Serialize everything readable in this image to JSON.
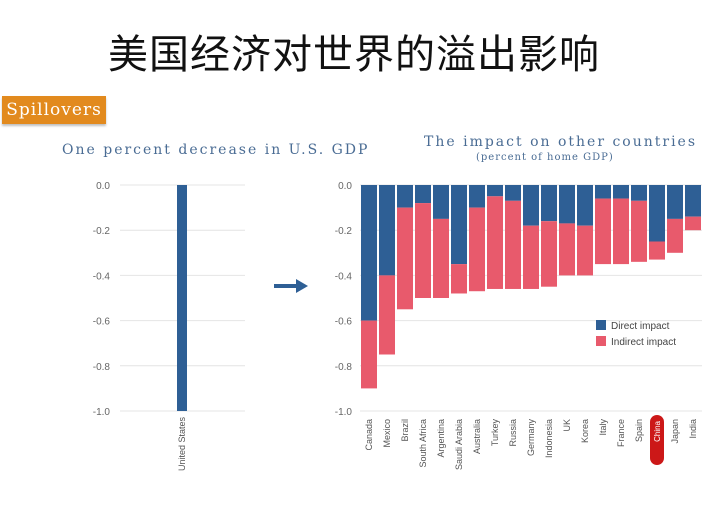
{
  "slide": {
    "title": "美国经济对世界的溢出影响",
    "badge": "Spillovers"
  },
  "colors": {
    "direct": "#2e5f95",
    "indirect": "#e85a6c",
    "badge": "#e28a1e",
    "arrow": "#2e5f95",
    "highlight": "#cc1818"
  },
  "chart_data": [
    {
      "type": "bar",
      "title": "One percent decrease in U.S. GDP",
      "categories": [
        "United States"
      ],
      "values": [
        -1.0
      ],
      "ylim": [
        -1.0,
        0.0
      ],
      "yticks": [
        "0.0",
        "-0.2",
        "-0.4",
        "-0.6",
        "-0.8",
        "-1.0"
      ],
      "grid": true
    },
    {
      "type": "bar",
      "stacked": true,
      "title": "The impact on other countries",
      "subtitle": "(percent of home GDP)",
      "categories": [
        "Canada",
        "Mexico",
        "Brazil",
        "South Africa",
        "Argentina",
        "Saudi Arabia",
        "Australia",
        "Turkey",
        "Russia",
        "Germany",
        "Indonesia",
        "UK",
        "Korea",
        "Italy",
        "France",
        "Spain",
        "China",
        "Japan",
        "India"
      ],
      "highlighted_category": "China",
      "series": [
        {
          "name": "Direct impact",
          "values": [
            -0.6,
            -0.4,
            -0.1,
            -0.08,
            -0.15,
            -0.35,
            -0.1,
            -0.05,
            -0.07,
            -0.18,
            -0.16,
            -0.17,
            -0.18,
            -0.06,
            -0.06,
            -0.07,
            -0.25,
            -0.15,
            -0.14
          ]
        },
        {
          "name": "Indirect impact",
          "values": [
            -0.3,
            -0.35,
            -0.45,
            -0.42,
            -0.35,
            -0.13,
            -0.37,
            -0.41,
            -0.39,
            -0.28,
            -0.29,
            -0.23,
            -0.22,
            -0.29,
            -0.29,
            -0.27,
            -0.08,
            -0.15,
            -0.06
          ]
        }
      ],
      "ylim": [
        -1.0,
        0.0
      ],
      "yticks": [
        "0.0",
        "-0.2",
        "-0.4",
        "-0.6",
        "-0.8",
        "-1.0"
      ],
      "grid": true,
      "legend": "right"
    }
  ]
}
